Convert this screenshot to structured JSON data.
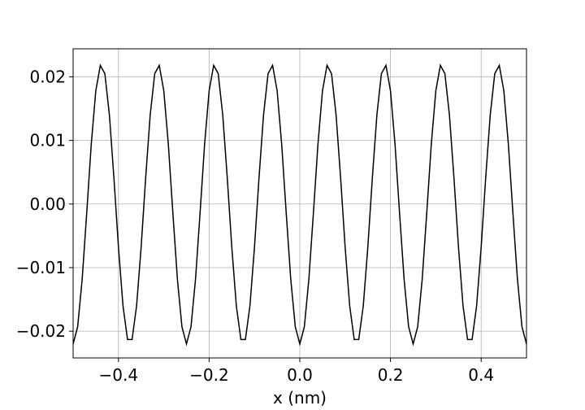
{
  "chart_data": {
    "type": "line",
    "xlabel": "x (nm)",
    "x": [
      -0.5,
      -0.49,
      -0.48,
      -0.47,
      -0.46,
      -0.45,
      -0.44,
      -0.43,
      -0.42,
      -0.41,
      -0.4,
      -0.39,
      -0.38,
      -0.37,
      -0.36,
      -0.35,
      -0.34,
      -0.33,
      -0.32,
      -0.31,
      -0.3,
      -0.29,
      -0.28,
      -0.27,
      -0.26,
      -0.25,
      -0.24,
      -0.23,
      -0.22,
      -0.21,
      -0.2,
      -0.19,
      -0.18,
      -0.17,
      -0.16,
      -0.15,
      -0.14,
      -0.13,
      -0.12,
      -0.11,
      -0.1,
      -0.09,
      -0.08,
      -0.07,
      -0.06,
      -0.05,
      -0.04,
      -0.03,
      -0.02,
      -0.01,
      0,
      0.01,
      0.02,
      0.03,
      0.04,
      0.05,
      0.06,
      0.07,
      0.08,
      0.09,
      0.1,
      0.11,
      0.12,
      0.13,
      0.14,
      0.15,
      0.16,
      0.17,
      0.18,
      0.19,
      0.2,
      0.21,
      0.22,
      0.23,
      0.24,
      0.25,
      0.26,
      0.27,
      0.28,
      0.29,
      0.3,
      0.31,
      0.32,
      0.33,
      0.34,
      0.35,
      0.36,
      0.37,
      0.38,
      0.39,
      0.4,
      0.41,
      0.42,
      0.43,
      0.44,
      0.45,
      0.46,
      0.47,
      0.48,
      0.49,
      0.5
    ],
    "series": [
      {
        "color": "#000000",
        "values": [
          -0.022,
          -0.0193,
          -0.0118,
          -0.0014,
          0.0094,
          0.0178,
          0.0218,
          0.0205,
          0.014,
          0.0041,
          -0.0068,
          -0.016,
          -0.0213,
          -0.0213,
          -0.016,
          -0.0068,
          0.0041,
          0.014,
          0.0205,
          0.0218,
          0.0178,
          0.0094,
          -0.0014,
          -0.0118,
          -0.0193,
          -0.022,
          -0.0193,
          -0.0118,
          -0.0014,
          0.0094,
          0.0178,
          0.0218,
          0.0205,
          0.014,
          0.0041,
          -0.0068,
          -0.016,
          -0.0213,
          -0.0213,
          -0.016,
          -0.0068,
          0.0041,
          0.014,
          0.0205,
          0.0218,
          0.0178,
          0.0094,
          -0.0014,
          -0.0118,
          -0.0193,
          -0.022,
          -0.0193,
          -0.0118,
          -0.0014,
          0.0094,
          0.0178,
          0.0218,
          0.0205,
          0.014,
          0.0041,
          -0.0068,
          -0.016,
          -0.0213,
          -0.0213,
          -0.016,
          -0.0068,
          0.0041,
          0.014,
          0.0205,
          0.0218,
          0.0178,
          0.0094,
          -0.0014,
          -0.0118,
          -0.0193,
          -0.022,
          -0.0193,
          -0.0118,
          -0.0014,
          0.0094,
          0.0178,
          0.0218,
          0.0205,
          0.014,
          0.0041,
          -0.0068,
          -0.016,
          -0.0213,
          -0.0213,
          -0.016,
          -0.0068,
          0.0041,
          0.014,
          0.0205,
          0.0218,
          0.0178,
          0.0094,
          -0.0014,
          -0.0118,
          -0.0193,
          -0.022
        ]
      }
    ],
    "xlim": [
      -0.5,
      0.5
    ],
    "xticks": [
      {
        "value": -0.4,
        "label": "−0.4"
      },
      {
        "value": -0.2,
        "label": "−0.2"
      },
      {
        "value": 0,
        "label": "0.0"
      },
      {
        "value": 0.2,
        "label": "0.2"
      },
      {
        "value": 0.4,
        "label": "0.4"
      }
    ],
    "ylim": [
      -0.0242,
      0.0244
    ],
    "yticks": [
      {
        "value": -0.02,
        "label": "−0.02"
      },
      {
        "value": -0.01,
        "label": "−0.01"
      },
      {
        "value": 0,
        "label": "0.00"
      },
      {
        "value": 0.01,
        "label": "0.01"
      },
      {
        "value": 0.02,
        "label": "0.02"
      }
    ],
    "grid": true
  }
}
